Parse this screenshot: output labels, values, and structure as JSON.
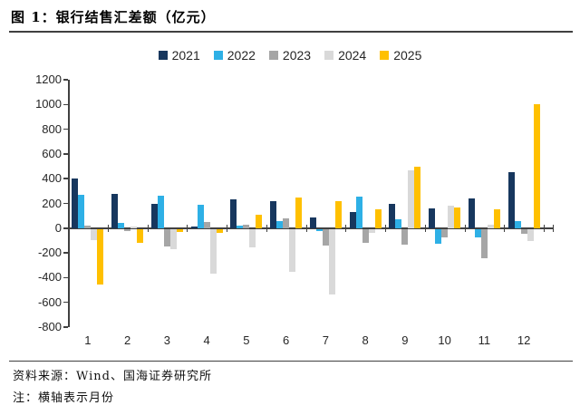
{
  "figure": {
    "title": "图 1：银行结售汇差额（亿元）",
    "source_note": "资料来源：Wind、国海证券研究所",
    "footnote": "注：横轴表示月份"
  },
  "chart_data": {
    "type": "bar",
    "title": "银行结售汇差额（亿元）",
    "categories": [
      "1",
      "2",
      "3",
      "4",
      "5",
      "6",
      "7",
      "8",
      "9",
      "10",
      "11",
      "12"
    ],
    "categories_meaning": "月份",
    "series": [
      {
        "name": "2021",
        "color": "#17375E",
        "values": [
          405,
          280,
          200,
          15,
          230,
          215,
          90,
          130,
          200,
          160,
          240,
          455
        ]
      },
      {
        "name": "2022",
        "color": "#2EB0E6",
        "values": [
          270,
          40,
          260,
          190,
          20,
          60,
          -20,
          255,
          70,
          -120,
          -70,
          60
        ]
      },
      {
        "name": "2023",
        "color": "#A6A6A6",
        "values": [
          20,
          -20,
          -145,
          50,
          30,
          80,
          -135,
          -110,
          -130,
          -70,
          -235,
          -40
        ]
      },
      {
        "name": "2024",
        "color": "#D9D9D9",
        "values": [
          -90,
          10,
          -165,
          -365,
          -150,
          -350,
          -530,
          -30,
          470,
          180,
          30,
          -95
        ]
      },
      {
        "name": "2025",
        "color": "#FFC000",
        "values": [
          -450,
          -110,
          -25,
          -35,
          110,
          250,
          220,
          150,
          500,
          170,
          150,
          1000
        ]
      }
    ],
    "ylim": [
      -800,
      1200
    ],
    "ytick_step": 200,
    "legend_position": "top-center",
    "grid": false,
    "axis_color": "#404040"
  }
}
